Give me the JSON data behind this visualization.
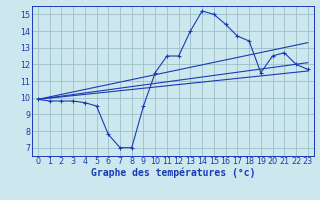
{
  "bg_color": "#cce8ee",
  "line_color": "#1a3ab4",
  "grid_color": "#9bbfc8",
  "xlabel": "Graphe des températures (°c)",
  "xlabel_fontsize": 7.0,
  "tick_fontsize": 5.8,
  "ylim": [
    6.5,
    15.5
  ],
  "xlim": [
    -0.5,
    23.5
  ],
  "yticks": [
    7,
    8,
    9,
    10,
    11,
    12,
    13,
    14,
    15
  ],
  "xticks": [
    0,
    1,
    2,
    3,
    4,
    5,
    6,
    7,
    8,
    9,
    10,
    11,
    12,
    13,
    14,
    15,
    16,
    17,
    18,
    19,
    20,
    21,
    22,
    23
  ],
  "main_x": [
    0,
    1,
    2,
    3,
    4,
    5,
    6,
    7,
    8,
    9,
    10,
    11,
    12,
    13,
    14,
    15,
    16,
    17,
    18,
    19,
    20,
    21,
    22,
    23
  ],
  "main_y": [
    9.9,
    9.8,
    9.8,
    9.8,
    9.7,
    9.5,
    7.8,
    7.0,
    7.0,
    9.5,
    11.5,
    12.5,
    12.5,
    14.0,
    15.2,
    15.0,
    14.4,
    13.7,
    13.4,
    11.5,
    12.5,
    12.7,
    12.0,
    11.7
  ],
  "trend1_x": [
    0,
    23
  ],
  "trend1_y": [
    9.9,
    11.6
  ],
  "trend2_x": [
    0,
    23
  ],
  "trend2_y": [
    9.9,
    12.1
  ],
  "trend3_x": [
    0,
    23
  ],
  "trend3_y": [
    9.9,
    13.3
  ]
}
